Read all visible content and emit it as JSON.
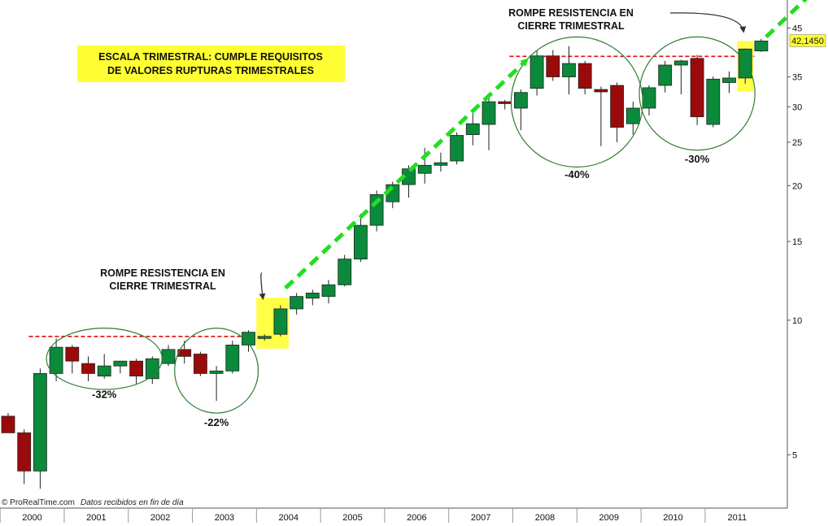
{
  "chart_data": {
    "type": "candlestick",
    "scale": "log",
    "ylim": [
      3.8,
      52
    ],
    "y_ticks": [
      5,
      10,
      15,
      20,
      25,
      30,
      35,
      45
    ],
    "x_ticks": [
      "2000",
      "2001",
      "2002",
      "2003",
      "2004",
      "2005",
      "2006",
      "2007",
      "2008",
      "2009",
      "2010",
      "2011"
    ],
    "last_value_label": "42,1450",
    "colors": {
      "up": "#0a8a3a",
      "down": "#9b0a0a",
      "resistance": "#e01010",
      "arrow": "#22dd22",
      "highlight": "#ffff33",
      "circle": "#2e7d32"
    },
    "candles": [
      {
        "t": "2000-Q1",
        "o": 6.1,
        "h": 6.2,
        "l": 5.6,
        "c": 5.6
      },
      {
        "t": "2000-Q2",
        "o": 5.6,
        "h": 5.7,
        "l": 4.3,
        "c": 4.6
      },
      {
        "t": "2000-Q3",
        "o": 4.6,
        "h": 7.8,
        "l": 4.2,
        "c": 7.6
      },
      {
        "t": "2000-Q4",
        "o": 7.6,
        "h": 9.1,
        "l": 7.3,
        "c": 8.7
      },
      {
        "t": "2001-Q1",
        "o": 8.7,
        "h": 8.8,
        "l": 7.6,
        "c": 8.1
      },
      {
        "t": "2001-Q2",
        "o": 8.0,
        "h": 8.3,
        "l": 7.3,
        "c": 7.6
      },
      {
        "t": "2001-Q3",
        "o": 7.5,
        "h": 8.4,
        "l": 7.4,
        "c": 7.9
      },
      {
        "t": "2001-Q4",
        "o": 7.9,
        "h": 8.1,
        "l": 7.6,
        "c": 8.1
      },
      {
        "t": "2002-Q1",
        "o": 8.1,
        "h": 8.2,
        "l": 7.2,
        "c": 7.5
      },
      {
        "t": "2002-Q2",
        "o": 7.4,
        "h": 8.3,
        "l": 7.2,
        "c": 8.2
      },
      {
        "t": "2002-Q3",
        "o": 8.0,
        "h": 8.8,
        "l": 7.9,
        "c": 8.6
      },
      {
        "t": "2002-Q4",
        "o": 8.6,
        "h": 9.0,
        "l": 8.0,
        "c": 8.3
      },
      {
        "t": "2003-Q1",
        "o": 8.4,
        "h": 8.5,
        "l": 7.5,
        "c": 7.6
      },
      {
        "t": "2003-Q2",
        "o": 7.6,
        "h": 7.9,
        "l": 6.6,
        "c": 7.7
      },
      {
        "t": "2003-Q3",
        "o": 7.7,
        "h": 9.0,
        "l": 7.6,
        "c": 8.8
      },
      {
        "t": "2003-Q4",
        "o": 8.8,
        "h": 9.5,
        "l": 8.5,
        "c": 9.4
      },
      {
        "t": "2004-Q1",
        "o": 9.1,
        "h": 9.3,
        "l": 9.0,
        "c": 9.2
      },
      {
        "t": "2004-Q2",
        "o": 9.3,
        "h": 10.8,
        "l": 9.2,
        "c": 10.6
      },
      {
        "t": "2004-Q3",
        "o": 10.6,
        "h": 11.5,
        "l": 10.3,
        "c": 11.3
      },
      {
        "t": "2004-Q4",
        "o": 11.2,
        "h": 11.7,
        "l": 10.8,
        "c": 11.5
      },
      {
        "t": "2005-Q1",
        "o": 11.3,
        "h": 12.3,
        "l": 10.9,
        "c": 12.0
      },
      {
        "t": "2005-Q2",
        "o": 12.0,
        "h": 14.0,
        "l": 11.9,
        "c": 13.7
      },
      {
        "t": "2005-Q3",
        "o": 13.7,
        "h": 17.3,
        "l": 13.5,
        "c": 16.3
      },
      {
        "t": "2005-Q4",
        "o": 16.3,
        "h": 19.5,
        "l": 15.8,
        "c": 19.1
      },
      {
        "t": "2006-Q1",
        "o": 18.4,
        "h": 20.4,
        "l": 17.8,
        "c": 20.1
      },
      {
        "t": "2006-Q2",
        "o": 20.1,
        "h": 22.2,
        "l": 18.8,
        "c": 21.8
      },
      {
        "t": "2006-Q3",
        "o": 21.3,
        "h": 24.3,
        "l": 20.2,
        "c": 22.2
      },
      {
        "t": "2006-Q4",
        "o": 22.2,
        "h": 23.7,
        "l": 21.5,
        "c": 22.5
      },
      {
        "t": "2007-Q1",
        "o": 22.7,
        "h": 26.3,
        "l": 22.3,
        "c": 25.9
      },
      {
        "t": "2007-Q2",
        "o": 26.0,
        "h": 29.4,
        "l": 24.6,
        "c": 27.5
      },
      {
        "t": "2007-Q3",
        "o": 27.4,
        "h": 31.7,
        "l": 24.0,
        "c": 30.8
      },
      {
        "t": "2007-Q4",
        "o": 30.8,
        "h": 31.1,
        "l": 29.6,
        "c": 30.5
      },
      {
        "t": "2008-Q1",
        "o": 29.8,
        "h": 32.8,
        "l": 26.6,
        "c": 32.3
      },
      {
        "t": "2008-Q2",
        "o": 33.0,
        "h": 40.0,
        "l": 31.8,
        "c": 39.0
      },
      {
        "t": "2008-Q3",
        "o": 39.0,
        "h": 40.2,
        "l": 34.3,
        "c": 35.0
      },
      {
        "t": "2008-Q4",
        "o": 35.0,
        "h": 41.0,
        "l": 32.0,
        "c": 37.5
      },
      {
        "t": "2009-Q1",
        "o": 37.5,
        "h": 38.0,
        "l": 32.0,
        "c": 33.0
      },
      {
        "t": "2009-Q2",
        "o": 32.8,
        "h": 33.3,
        "l": 24.5,
        "c": 32.4
      },
      {
        "t": "2009-Q3",
        "o": 33.5,
        "h": 34.0,
        "l": 25.0,
        "c": 27.0
      },
      {
        "t": "2009-Q4",
        "o": 27.5,
        "h": 30.8,
        "l": 26.0,
        "c": 29.8
      },
      {
        "t": "2010-Q1",
        "o": 29.8,
        "h": 33.5,
        "l": 28.7,
        "c": 33.1
      },
      {
        "t": "2010-Q2",
        "o": 33.5,
        "h": 38.0,
        "l": 32.3,
        "c": 37.2
      },
      {
        "t": "2010-Q3",
        "o": 37.2,
        "h": 38.2,
        "l": 32.0,
        "c": 38.0
      },
      {
        "t": "2010-Q4",
        "o": 38.5,
        "h": 39.2,
        "l": 27.3,
        "c": 28.5
      },
      {
        "t": "2011-Q1",
        "o": 27.4,
        "h": 35.1,
        "l": 27.0,
        "c": 34.6
      },
      {
        "t": "2011-Q2",
        "o": 34.0,
        "h": 36.0,
        "l": 32.2,
        "c": 34.8
      },
      {
        "t": "2011-Q3",
        "o": 34.8,
        "h": 40.5,
        "l": 33.8,
        "c": 40.4
      },
      {
        "t": "2011-Q4",
        "o": 40.0,
        "h": 42.6,
        "l": 39.8,
        "c": 42.1
      }
    ],
    "resistance_lines": [
      {
        "value": 9.2,
        "from": "2000-Q3",
        "to": "2004-Q1"
      },
      {
        "value": 38.9,
        "from": "2008-Q1",
        "to": "2011-Q3"
      }
    ],
    "highlights": [
      {
        "from": "2004-Q1",
        "to": "2004-Q2"
      },
      {
        "from": "2011-Q3",
        "to": "2011-Q3"
      }
    ],
    "circles": [
      {
        "from": "2000-Q4",
        "to": "2002-Q2",
        "low": 7.0,
        "high": 9.6,
        "label": "-32%",
        "label_value": 6.7
      },
      {
        "from": "2002-Q4",
        "to": "2003-Q4",
        "low": 6.2,
        "high": 9.6,
        "label": "-22%",
        "label_value": 5.8
      },
      {
        "from": "2008-Q1",
        "to": "2009-Q4",
        "low": 22.0,
        "high": 43.0,
        "label": "-40%",
        "label_value": 20.8
      },
      {
        "from": "2010-Q1",
        "to": "2011-Q3",
        "low": 24.0,
        "high": 43.0,
        "label": "-30%",
        "label_value": 22.5
      }
    ],
    "trend_arrows": [
      {
        "from": "2004-Q2",
        "from_value": 11.8,
        "to": "2008-Q1",
        "to_value": 38.0
      },
      {
        "from": "2011-Q4",
        "from_value": 43.0,
        "to": "2012-Q3",
        "to_value": 54.5
      }
    ],
    "callouts": [
      {
        "lines": [
          "ROMPE RESISTENCIA EN",
          "CIERRE TRIMESTRAL"
        ],
        "target": "2004-Q1",
        "target_value": 11.0
      },
      {
        "lines": [
          "ROMPE RESISTENCIA EN",
          "CIERRE TRIMESTRAL"
        ],
        "target": "2011-Q3",
        "target_value": 43.5
      }
    ],
    "title_box": [
      "ESCALA TRIMESTRAL: CUMPLE REQUISITOS",
      "DE VALORES RUPTURAS TRIMESTRALES"
    ],
    "credit": {
      "brand": "© ProRealTime.com",
      "note": "Datos recibidos en fin de día"
    }
  }
}
